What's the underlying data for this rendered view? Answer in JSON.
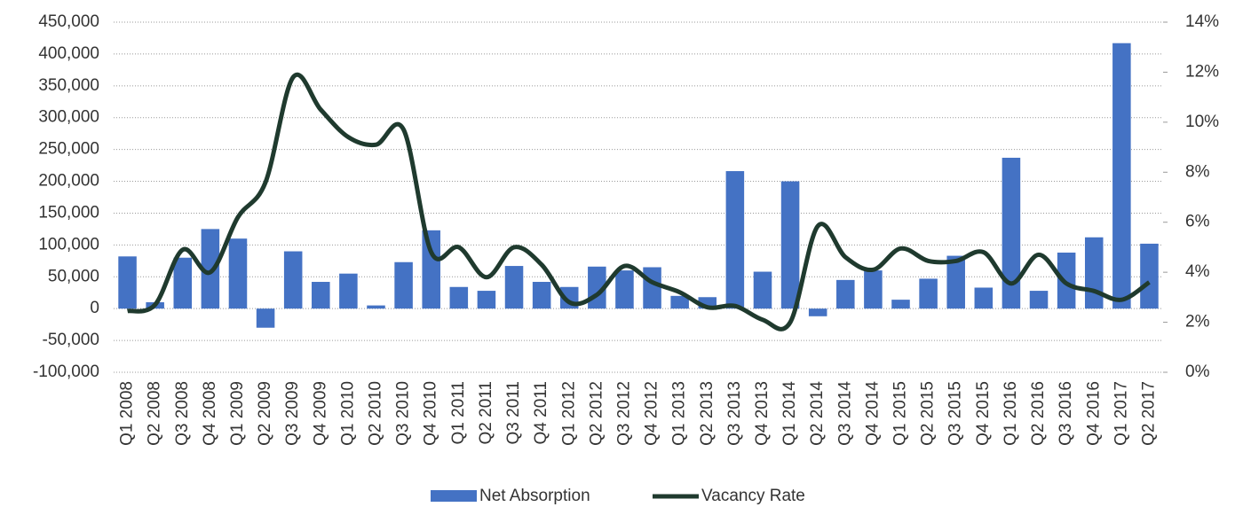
{
  "chart_data": {
    "type": "bar-line",
    "categories": [
      "Q1 2008",
      "Q2 2008",
      "Q3 2008",
      "Q4 2008",
      "Q1 2009",
      "Q2 2009",
      "Q3 2009",
      "Q4 2009",
      "Q1 2010",
      "Q2 2010",
      "Q3 2010",
      "Q4 2010",
      "Q1 2011",
      "Q2 2011",
      "Q3 2011",
      "Q4 2011",
      "Q1 2012",
      "Q2 2012",
      "Q3 2012",
      "Q4 2012",
      "Q1 2013",
      "Q2 2013",
      "Q3 2013",
      "Q4 2013",
      "Q1 2014",
      "Q2 2014",
      "Q3 2014",
      "Q4 2014",
      "Q1 2015",
      "Q2 2015",
      "Q3 2015",
      "Q4 2015",
      "Q1 2016",
      "Q2 2016",
      "Q3 2016",
      "Q4 2016",
      "Q1 2017",
      "Q2 2017"
    ],
    "series": [
      {
        "name": "Net Absorption",
        "type": "bar",
        "color": "#4472c4",
        "values": [
          82000,
          10000,
          80000,
          125000,
          110000,
          -30000,
          90000,
          42000,
          55000,
          5000,
          73000,
          123000,
          34000,
          28000,
          67000,
          42000,
          34000,
          66000,
          60000,
          65000,
          20000,
          18000,
          216000,
          58000,
          200000,
          -12000,
          45000,
          60000,
          14000,
          47000,
          83000,
          33000,
          237000,
          28000,
          88000,
          112000,
          417000,
          102000
        ]
      },
      {
        "name": "Vacancy Rate",
        "type": "line",
        "axis": "y2",
        "color": "#1f3a2e",
        "values": [
          2.45,
          2.7,
          4.9,
          4.0,
          6.2,
          7.6,
          11.8,
          10.5,
          9.4,
          9.1,
          9.7,
          4.8,
          5.0,
          3.8,
          5.0,
          4.3,
          2.8,
          3.1,
          4.25,
          3.6,
          3.2,
          2.6,
          2.65,
          2.1,
          2.0,
          5.85,
          4.6,
          4.1,
          4.95,
          4.45,
          4.45,
          4.8,
          3.55,
          4.7,
          3.55,
          3.25,
          2.9,
          3.6
        ]
      }
    ],
    "ylim": [
      -100000,
      450000
    ],
    "yticks": [
      {
        "value": -100000,
        "label": "-100,000"
      },
      {
        "value": -50000,
        "label": "-50,000"
      },
      0,
      {
        "value": 50000,
        "label": "50,000"
      },
      {
        "value": 100000,
        "label": "100,000"
      },
      {
        "value": 150000,
        "label": "150,000"
      },
      {
        "value": 200000,
        "label": "200,000"
      },
      {
        "value": 250000,
        "label": "250,000"
      },
      {
        "value": 300000,
        "label": "300,000"
      },
      {
        "value": 350000,
        "label": "350,000"
      },
      {
        "value": 400000,
        "label": "400,000"
      },
      {
        "value": 450000,
        "label": "450,000"
      }
    ],
    "y2lim": [
      0,
      14
    ],
    "y2ticks": [
      {
        "value": 0,
        "label": "0%"
      },
      {
        "value": 2,
        "label": "2%"
      },
      {
        "value": 4,
        "label": "4%"
      },
      {
        "value": 6,
        "label": "6%"
      },
      {
        "value": 8,
        "label": "8%"
      },
      {
        "value": 10,
        "label": "10%"
      },
      {
        "value": 12,
        "label": "12%"
      },
      {
        "value": 14,
        "label": "14%"
      }
    ],
    "grid": true,
    "legend": "bottom"
  }
}
